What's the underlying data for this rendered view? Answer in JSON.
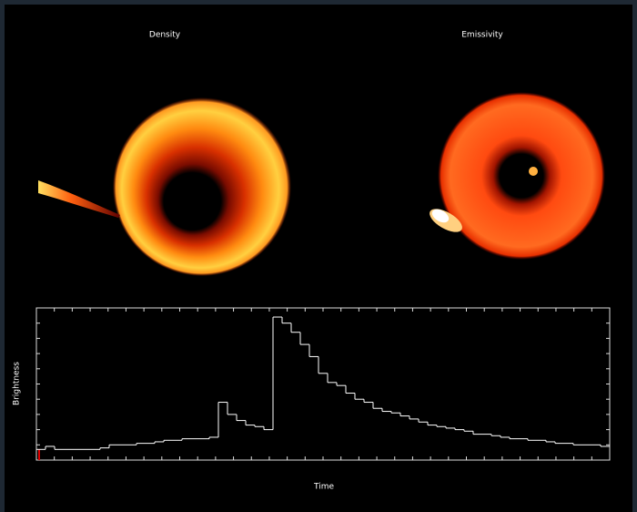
{
  "panels": [
    {
      "title": "Density"
    },
    {
      "title": "Emissivity"
    }
  ],
  "chart_data": {
    "type": "line",
    "step": true,
    "color": "#ffffff",
    "xlabel": "Time",
    "ylabel": "Brightness",
    "ylim": [
      0,
      10
    ],
    "values": [
      0.7,
      0.9,
      0.7,
      0.7,
      0.7,
      0.7,
      0.7,
      0.8,
      1.0,
      1.0,
      1.0,
      1.1,
      1.1,
      1.2,
      1.3,
      1.3,
      1.4,
      1.4,
      1.4,
      1.5,
      3.8,
      3.0,
      2.6,
      2.3,
      2.2,
      2.0,
      9.4,
      9.0,
      8.4,
      7.6,
      6.8,
      5.7,
      5.1,
      4.9,
      4.4,
      4.0,
      3.8,
      3.4,
      3.2,
      3.1,
      2.9,
      2.7,
      2.5,
      2.3,
      2.2,
      2.1,
      2.0,
      1.9,
      1.7,
      1.7,
      1.6,
      1.5,
      1.4,
      1.4,
      1.3,
      1.3,
      1.2,
      1.1,
      1.1,
      1.0,
      1.0,
      1.0,
      0.9
    ]
  }
}
